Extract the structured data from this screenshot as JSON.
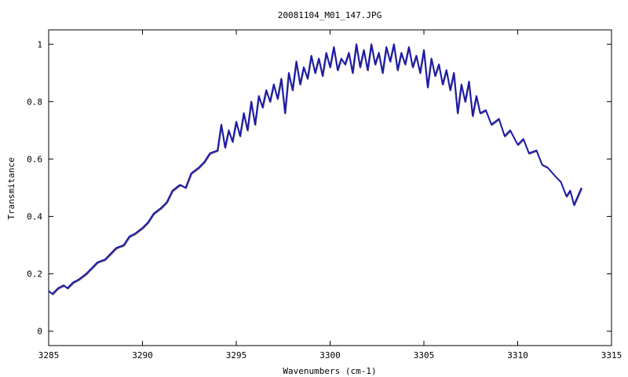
{
  "chart_data": {
    "type": "line",
    "title": "20081104_M01_147.JPG",
    "xlabel": "Wavenumbers (cm-1)",
    "ylabel": "Transmitance",
    "xlim": [
      3285,
      3315
    ],
    "ylim": [
      -0.05,
      1.05
    ],
    "x_ticks": [
      3285,
      3290,
      3295,
      3300,
      3305,
      3310,
      3315
    ],
    "x_tick_labels": [
      "3285",
      "3290",
      "3295",
      "3300",
      "3305",
      "3310",
      "3315"
    ],
    "y_ticks": [
      0,
      0.2,
      0.4,
      0.6,
      0.8,
      1
    ],
    "y_tick_labels": [
      "0",
      "0.2",
      "0.4",
      "0.6",
      "0.8",
      "1"
    ],
    "grid": false,
    "legend": false,
    "colors": {
      "line": "#1a1aa8",
      "shadow": "#7a6a6a",
      "frame": "#000000"
    },
    "series": [
      {
        "x": [
          3285.0,
          3285.2,
          3285.5,
          3285.8,
          3286.0,
          3286.3,
          3286.6,
          3287.0,
          3287.3,
          3287.6,
          3288.0,
          3288.3,
          3288.6,
          3289.0,
          3289.3,
          3289.6,
          3290.0,
          3290.3,
          3290.6,
          3291.0,
          3291.3,
          3291.6,
          3292.0,
          3292.3,
          3292.6,
          3293.0,
          3293.3,
          3293.6,
          3294.0,
          3294.2,
          3294.4,
          3294.6,
          3294.8,
          3295.0,
          3295.2,
          3295.4,
          3295.6,
          3295.8,
          3296.0,
          3296.2,
          3296.4,
          3296.6,
          3296.8,
          3297.0,
          3297.2,
          3297.4,
          3297.6,
          3297.8,
          3298.0,
          3298.2,
          3298.4,
          3298.6,
          3298.8,
          3299.0,
          3299.2,
          3299.4,
          3299.6,
          3299.8,
          3300.0,
          3300.2,
          3300.4,
          3300.6,
          3300.8,
          3301.0,
          3301.2,
          3301.4,
          3301.6,
          3301.8,
          3302.0,
          3302.2,
          3302.4,
          3302.6,
          3302.8,
          3303.0,
          3303.2,
          3303.4,
          3303.6,
          3303.8,
          3304.0,
          3304.2,
          3304.4,
          3304.6,
          3304.8,
          3305.0,
          3305.2,
          3305.4,
          3305.6,
          3305.8,
          3306.0,
          3306.2,
          3306.4,
          3306.6,
          3306.8,
          3307.0,
          3307.2,
          3307.4,
          3307.6,
          3307.8,
          3308.0,
          3308.3,
          3308.6,
          3309.0,
          3309.3,
          3309.6,
          3310.0,
          3310.3,
          3310.6,
          3311.0,
          3311.3,
          3311.6,
          3312.0,
          3312.3,
          3312.6,
          3312.8,
          3313.0,
          3313.2,
          3313.4
        ],
        "values": [
          0.14,
          0.13,
          0.15,
          0.16,
          0.15,
          0.17,
          0.18,
          0.2,
          0.22,
          0.24,
          0.25,
          0.27,
          0.29,
          0.3,
          0.33,
          0.34,
          0.36,
          0.38,
          0.41,
          0.43,
          0.45,
          0.49,
          0.51,
          0.5,
          0.55,
          0.57,
          0.59,
          0.62,
          0.63,
          0.72,
          0.64,
          0.7,
          0.66,
          0.73,
          0.68,
          0.76,
          0.7,
          0.8,
          0.72,
          0.82,
          0.78,
          0.84,
          0.8,
          0.86,
          0.81,
          0.88,
          0.76,
          0.9,
          0.84,
          0.94,
          0.86,
          0.92,
          0.88,
          0.96,
          0.9,
          0.95,
          0.89,
          0.97,
          0.92,
          0.99,
          0.91,
          0.95,
          0.93,
          0.97,
          0.9,
          1.0,
          0.92,
          0.98,
          0.91,
          1.0,
          0.93,
          0.97,
          0.9,
          0.99,
          0.94,
          1.0,
          0.91,
          0.97,
          0.93,
          0.99,
          0.92,
          0.96,
          0.9,
          0.98,
          0.85,
          0.95,
          0.89,
          0.93,
          0.86,
          0.91,
          0.84,
          0.9,
          0.76,
          0.86,
          0.8,
          0.87,
          0.75,
          0.82,
          0.76,
          0.77,
          0.72,
          0.74,
          0.68,
          0.7,
          0.65,
          0.67,
          0.62,
          0.63,
          0.58,
          0.57,
          0.54,
          0.52,
          0.47,
          0.49,
          0.44,
          0.47,
          0.5
        ]
      }
    ]
  }
}
